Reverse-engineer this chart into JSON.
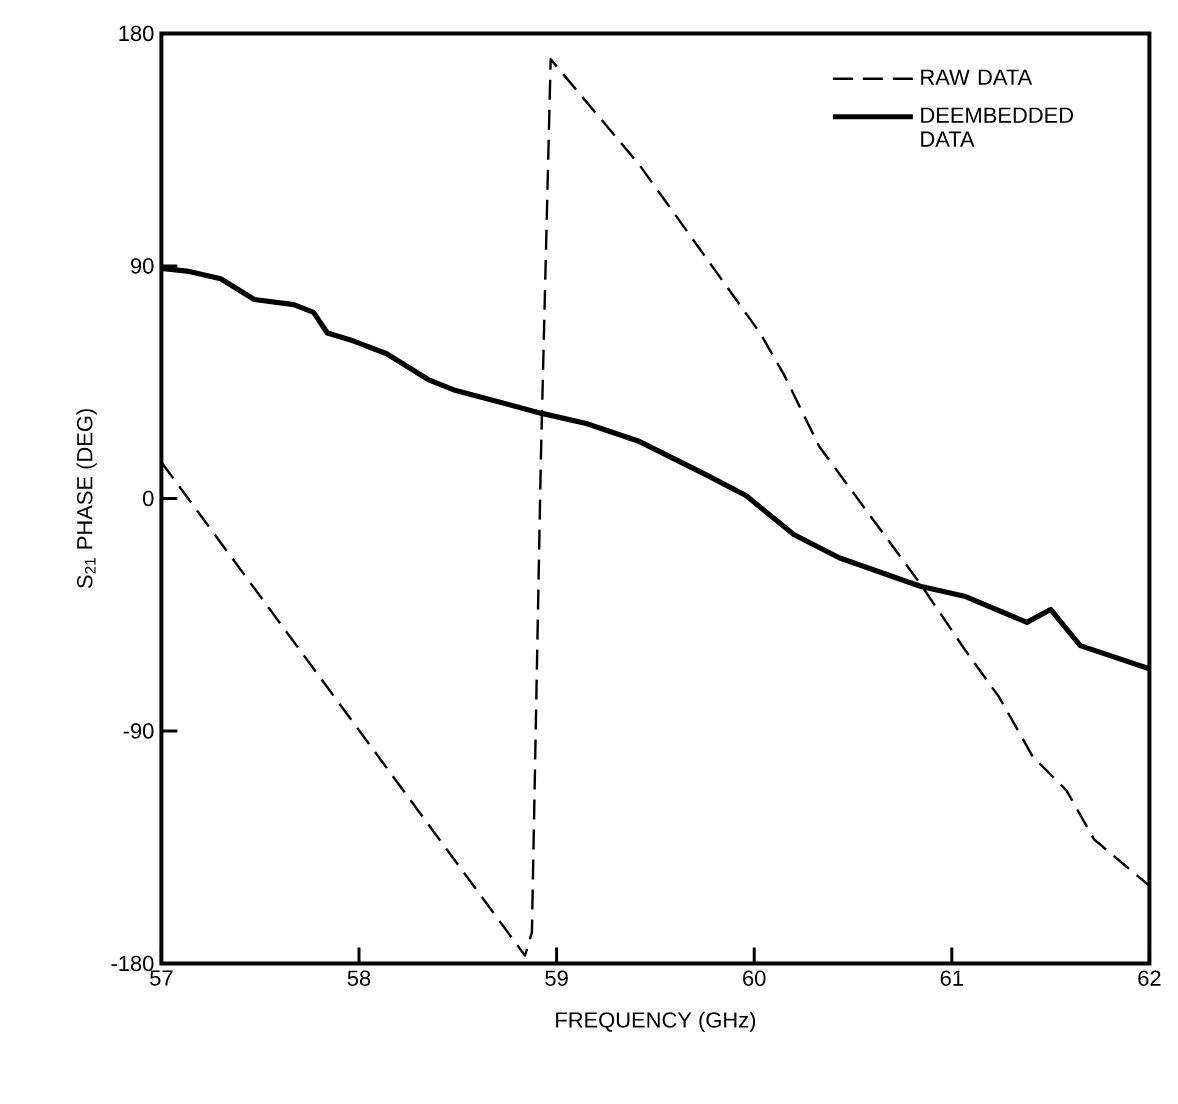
{
  "chart_data": {
    "type": "line",
    "xlabel": "FREQUENCY (GHz)",
    "ylabel": "S$_{21}$ PHASE (DEG)",
    "xlim": [
      57,
      62
    ],
    "ylim": [
      -180,
      180
    ],
    "xticks": [
      57,
      58,
      59,
      60,
      61,
      62
    ],
    "yticks": [
      -180,
      -90,
      0,
      90,
      180
    ],
    "legend": "top right",
    "grid": false,
    "marker": "none",
    "series": [
      {
        "name": "RAW DATA",
        "color": "#000000",
        "line_style": "dashed",
        "x": [
          57,
          57.8,
          58.84,
          58.875,
          58.92,
          58.97,
          59.42,
          60.03,
          60.15,
          60.33,
          60.84,
          61.07,
          61.24,
          61.41,
          61.58,
          61.72,
          62
        ],
        "values": [
          14,
          -69,
          -177,
          -168,
          14,
          170,
          129,
          64,
          48,
          20,
          -33,
          -59,
          -77,
          -100,
          -113,
          -132,
          -150
        ]
      },
      {
        "name": "DEEMBEDDED DATA",
        "color": "#000000",
        "line_style": "solid",
        "x": [
          57,
          57.13,
          57.3,
          57.47,
          57.67,
          57.77,
          57.84,
          57.97,
          58.14,
          58.35,
          58.48,
          58.92,
          59.15,
          59.42,
          59.76,
          59.96,
          60.2,
          60.43,
          60.84,
          61.07,
          61.38,
          61.5,
          61.65,
          62
        ],
        "values": [
          89,
          88,
          85,
          77,
          75,
          72,
          64,
          61,
          56,
          46,
          42,
          33,
          29,
          22,
          9,
          1,
          -14,
          -23,
          -34,
          -38,
          -48,
          -43,
          -57,
          -66
        ]
      }
    ]
  }
}
